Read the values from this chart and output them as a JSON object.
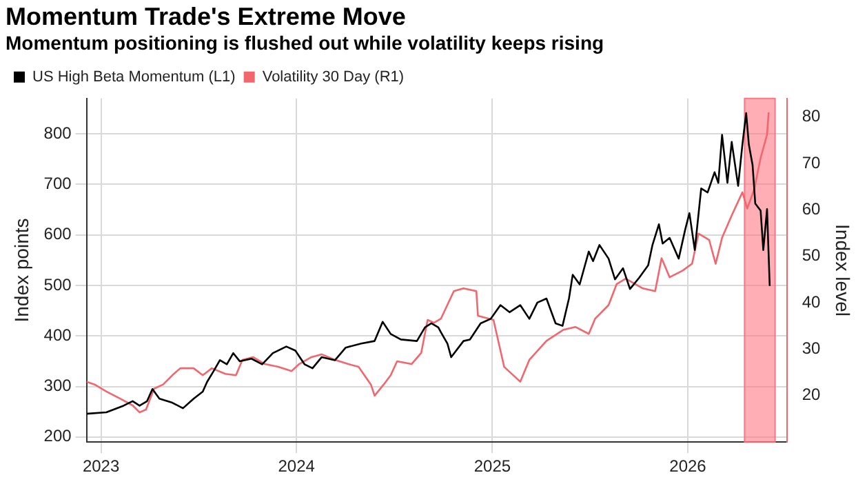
{
  "chart_data": {
    "type": "line",
    "title": "Momentum Trade's Extreme Move",
    "subtitle": "Momentum positioning is flushed out while volatility keeps rising",
    "ylabel": "Index points",
    "y2label": "Index level",
    "xlim": [
      "2022-12-05",
      "2026-07-05"
    ],
    "xticks": [
      {
        "value": "2023-01-01",
        "label": "2023"
      },
      {
        "value": "2024-01-01",
        "label": "2024"
      },
      {
        "value": "2025-01-01",
        "label": "2025"
      },
      {
        "value": "2026-01-01",
        "label": "2026"
      }
    ],
    "ylim": [
      190,
      870
    ],
    "yticks": [
      200,
      300,
      400,
      500,
      600,
      700,
      800
    ],
    "y2lim": [
      10,
      84
    ],
    "y2ticks": [
      20,
      30,
      40,
      50,
      60,
      70,
      80
    ],
    "grid": true,
    "legend": "top left",
    "series": [
      {
        "name": "US High Beta Momentum (L1)",
        "color": "#000000",
        "x": [
          "2022-12-05",
          "2023-01-11",
          "2023-02-12",
          "2023-03-01",
          "2023-03-14",
          "2023-03-28",
          "2023-04-07",
          "2023-04-20",
          "2023-05-14",
          "2023-06-03",
          "2023-06-23",
          "2023-07-10",
          "2023-07-18",
          "2023-07-30",
          "2023-08-11",
          "2023-08-24",
          "2023-09-05",
          "2023-09-17",
          "2023-10-09",
          "2023-10-29",
          "2023-11-18",
          "2023-12-13",
          "2023-12-30",
          "2024-01-16",
          "2024-01-31",
          "2024-02-17",
          "2024-03-13",
          "2024-04-02",
          "2024-05-01",
          "2024-05-26",
          "2024-06-10",
          "2024-06-25",
          "2024-07-14",
          "2024-08-13",
          "2024-08-28",
          "2024-09-09",
          "2024-09-22",
          "2024-09-27",
          "2024-10-09",
          "2024-10-16",
          "2024-11-08",
          "2024-11-20",
          "2024-12-10",
          "2024-12-29",
          "2025-01-16",
          "2025-02-02",
          "2025-02-22",
          "2025-03-11",
          "2025-03-26",
          "2025-04-12",
          "2025-04-29",
          "2025-05-12",
          "2025-05-24",
          "2025-05-31",
          "2025-06-13",
          "2025-06-30",
          "2025-07-08",
          "2025-07-20",
          "2025-08-06",
          "2025-08-18",
          "2025-09-02",
          "2025-09-15",
          "2025-10-02",
          "2025-10-19",
          "2025-10-27",
          "2025-11-08",
          "2025-11-15",
          "2025-11-28",
          "2025-12-15",
          "2025-12-27",
          "2026-01-04",
          "2026-01-14",
          "2026-01-26",
          "2026-02-07",
          "2026-02-20",
          "2026-02-27",
          "2026-03-06",
          "2026-03-16",
          "2026-03-24",
          "2026-04-05",
          "2026-04-13",
          "2026-04-20",
          "2026-04-25",
          "2026-05-02",
          "2026-05-07",
          "2026-05-17",
          "2026-05-22",
          "2026-05-29",
          "2026-06-03"
        ],
        "values": [
          246,
          249,
          262,
          271,
          262,
          271,
          295,
          276,
          268,
          257,
          276,
          290,
          309,
          330,
          352,
          344,
          366,
          350,
          355,
          344,
          366,
          379,
          371,
          344,
          336,
          358,
          352,
          377,
          385,
          390,
          428,
          404,
          393,
          390,
          417,
          425,
          417,
          407,
          385,
          358,
          390,
          393,
          425,
          434,
          461,
          447,
          461,
          434,
          466,
          474,
          425,
          420,
          474,
          521,
          502,
          567,
          548,
          580,
          553,
          512,
          534,
          493,
          515,
          540,
          580,
          621,
          583,
          594,
          553,
          610,
          643,
          570,
          692,
          684,
          724,
          703,
          798,
          703,
          784,
          697,
          779,
          841,
          779,
          738,
          662,
          648,
          570,
          651,
          499
        ]
      },
      {
        "name": "Volatility 30 Day (R1)",
        "color": "#f2666e",
        "axis": "y2",
        "x": [
          "2022-12-05",
          "2022-12-20",
          "2023-01-11",
          "2023-02-05",
          "2023-03-01",
          "2023-03-14",
          "2023-03-26",
          "2023-04-10",
          "2023-04-27",
          "2023-05-17",
          "2023-05-29",
          "2023-06-23",
          "2023-07-10",
          "2023-07-27",
          "2023-08-21",
          "2023-09-10",
          "2023-09-22",
          "2023-10-12",
          "2023-11-03",
          "2023-11-28",
          "2023-12-23",
          "2024-01-06",
          "2024-01-29",
          "2024-02-17",
          "2024-03-13",
          "2024-04-07",
          "2024-04-26",
          "2024-05-19",
          "2024-05-26",
          "2024-06-12",
          "2024-06-25",
          "2024-07-07",
          "2024-08-03",
          "2024-08-21",
          "2024-09-02",
          "2024-09-14",
          "2024-09-27",
          "2024-10-21",
          "2024-11-08",
          "2024-12-02",
          "2024-12-05",
          "2025-01-03",
          "2025-01-23",
          "2025-02-22",
          "2025-03-11",
          "2025-04-12",
          "2025-05-14",
          "2025-06-05",
          "2025-06-30",
          "2025-07-12",
          "2025-08-06",
          "2025-08-21",
          "2025-09-07",
          "2025-09-25",
          "2025-10-09",
          "2025-11-01",
          "2025-11-13",
          "2025-11-28",
          "2025-12-22",
          "2026-01-09",
          "2026-01-21",
          "2026-02-10",
          "2026-02-22",
          "2026-03-06",
          "2026-03-24",
          "2026-04-13",
          "2026-04-22",
          "2026-05-05",
          "2026-05-17",
          "2026-05-29",
          "2026-06-01"
        ],
        "values": [
          23.0,
          22.4,
          20.9,
          19.4,
          17.9,
          16.4,
          17.0,
          21.5,
          22.4,
          24.7,
          25.9,
          25.9,
          24.4,
          25.9,
          24.7,
          24.4,
          27.7,
          28.3,
          26.8,
          26.2,
          25.3,
          26.8,
          28.3,
          28.9,
          27.7,
          26.8,
          26.2,
          22.4,
          20.0,
          22.4,
          24.4,
          27.4,
          26.8,
          29.2,
          36.3,
          35.7,
          36.6,
          42.5,
          43.1,
          42.5,
          37.2,
          36.3,
          26.2,
          23.0,
          27.7,
          31.8,
          34.2,
          34.8,
          33.3,
          36.6,
          39.5,
          44.0,
          45.2,
          44.0,
          43.1,
          42.5,
          49.6,
          45.5,
          46.9,
          48.4,
          54.9,
          53.5,
          48.4,
          54.0,
          58.8,
          63.8,
          60.3,
          64.4,
          71.2,
          76.2,
          81.0
        ]
      }
    ],
    "bands": [
      {
        "axis": "x",
        "from": "2026-04-17",
        "to": "2026-06-13",
        "color": "#ff6b7a"
      }
    ]
  }
}
